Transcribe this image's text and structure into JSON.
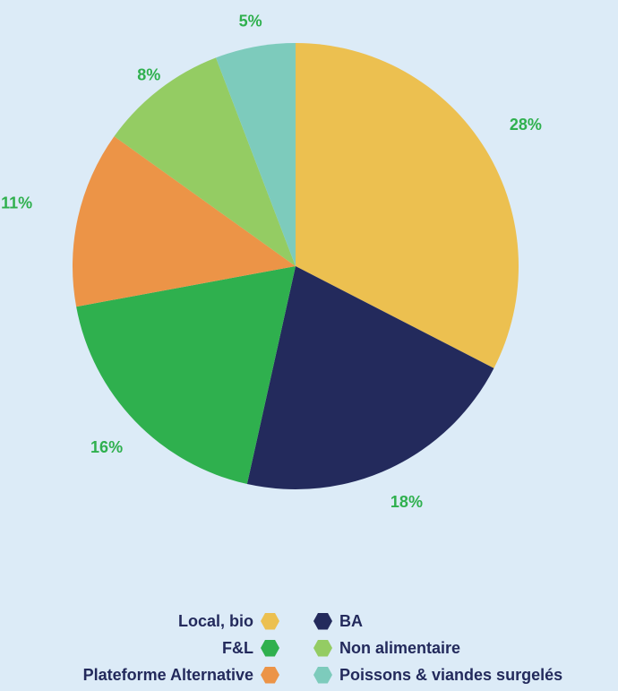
{
  "chart_data": {
    "type": "pie",
    "title": "",
    "label_color": "#2fb04e",
    "slices": [
      {
        "label": "Local, bio",
        "value": 28,
        "display": "28%",
        "color": "#ecc050"
      },
      {
        "label": "BA",
        "value": 18,
        "display": "18%",
        "color": "#232a5c"
      },
      {
        "label": "F&L",
        "value": 16,
        "display": "16%",
        "color": "#2fb04e"
      },
      {
        "label": "Plateforme Alternative",
        "value": 11,
        "display": "11%",
        "color": "#ec9447"
      },
      {
        "label": "Non alimentaire",
        "value": 8,
        "display": "8%",
        "color": "#94cc63"
      },
      {
        "label": "Poissons & viandes surgelés",
        "value": 5,
        "display": "5%",
        "color": "#7dcbbc"
      }
    ],
    "legend_position": "bottom"
  },
  "legend": {
    "left": [
      {
        "label": "Local, bio",
        "color": "#ecc050",
        "icon": "hexagon-icon"
      },
      {
        "label": "F&L",
        "color": "#2fb04e",
        "icon": "hexagon-icon"
      },
      {
        "label": "Plateforme Alternative",
        "color": "#ec9447",
        "icon": "hexagon-icon"
      }
    ],
    "right": [
      {
        "label": "BA",
        "color": "#232a5c",
        "icon": "hexagon-icon"
      },
      {
        "label": "Non alimentaire",
        "color": "#94cc63",
        "icon": "hexagon-icon"
      },
      {
        "label": "Poissons & viandes surgelés",
        "color": "#7dcbbc",
        "icon": "hexagon-icon"
      }
    ]
  }
}
